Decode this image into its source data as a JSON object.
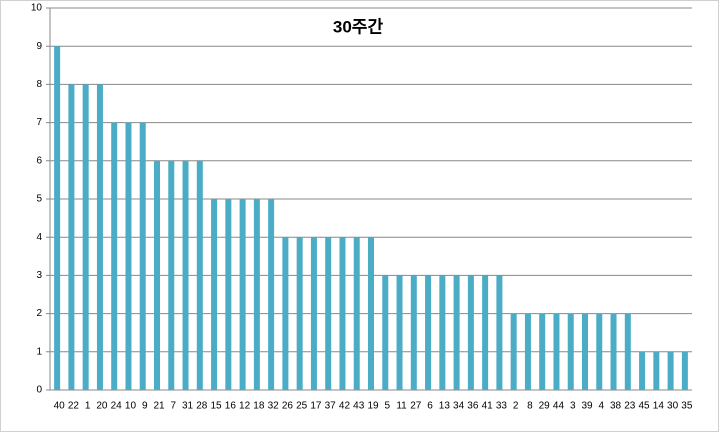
{
  "chart_data": {
    "type": "bar",
    "title": "30주간",
    "categories": [
      "40",
      "22",
      "1",
      "20",
      "24",
      "10",
      "9",
      "21",
      "7",
      "31",
      "28",
      "15",
      "16",
      "12",
      "18",
      "32",
      "26",
      "25",
      "17",
      "37",
      "42",
      "43",
      "19",
      "5",
      "11",
      "27",
      "6",
      "13",
      "34",
      "36",
      "41",
      "33",
      "2",
      "8",
      "29",
      "44",
      "3",
      "39",
      "4",
      "38",
      "23",
      "45",
      "14",
      "30",
      "35"
    ],
    "values": [
      9,
      8,
      8,
      8,
      7,
      7,
      7,
      6,
      6,
      6,
      6,
      5,
      5,
      5,
      5,
      5,
      4,
      4,
      4,
      4,
      4,
      4,
      4,
      3,
      3,
      3,
      3,
      3,
      3,
      3,
      3,
      3,
      2,
      2,
      2,
      2,
      2,
      2,
      2,
      2,
      2,
      1,
      1,
      1,
      1
    ],
    "color": "#4bacc6",
    "ylim": [
      0,
      10
    ],
    "yticks": [
      0,
      1,
      2,
      3,
      4,
      5,
      6,
      7,
      8,
      9,
      10
    ],
    "grid": true
  }
}
